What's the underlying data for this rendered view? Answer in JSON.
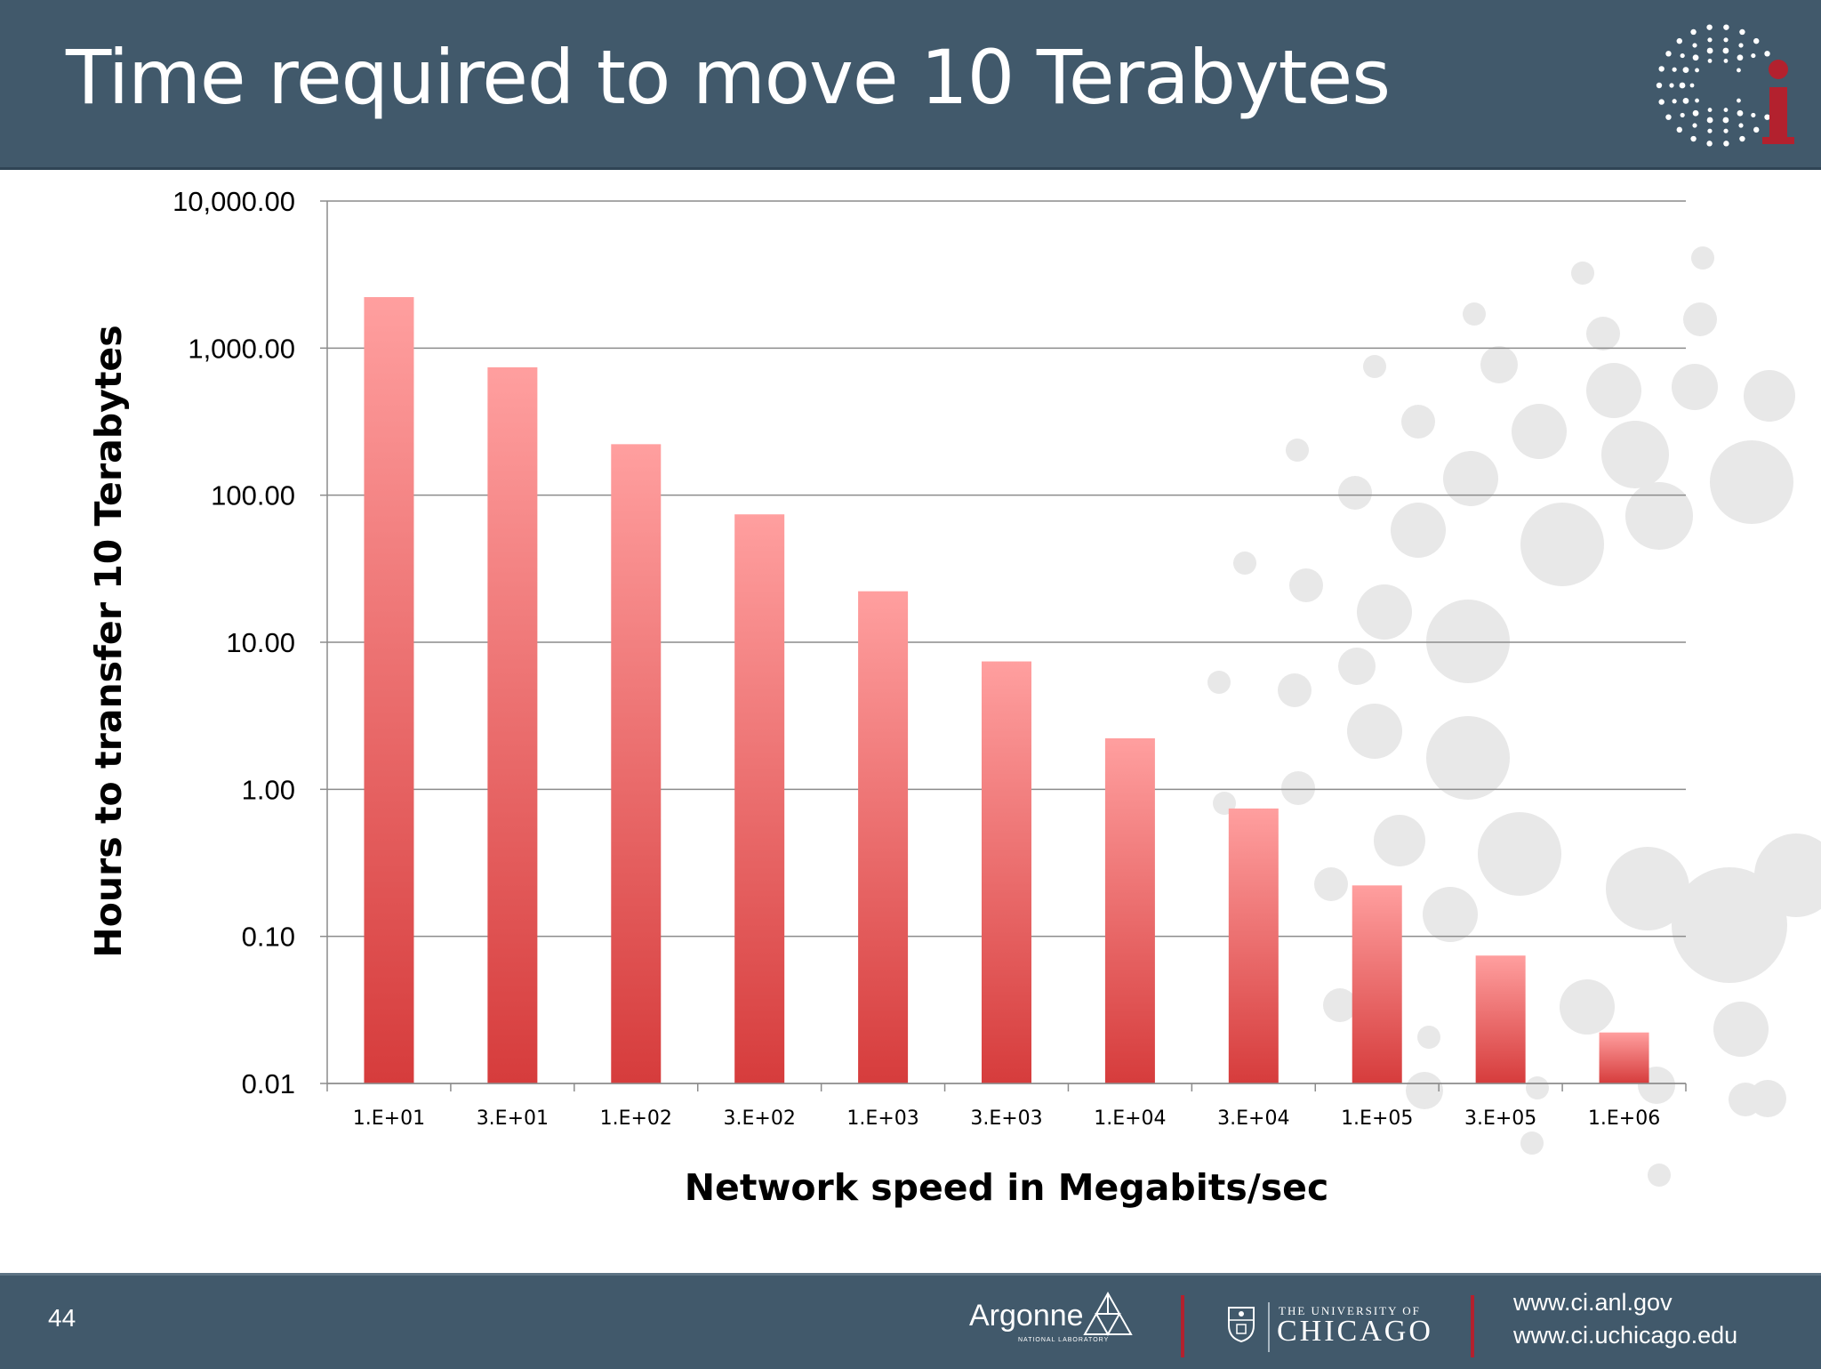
{
  "slide": {
    "title": "Time required to move 10 Terabytes",
    "page_number": "44",
    "footer": {
      "argonne_name": "Argonne",
      "argonne_sub": "NATIONAL LABORATORY",
      "uchicago_top": "THE UNIVERSITY OF",
      "uchicago_main": "CHICAGO",
      "url1": "www.ci.anl.gov",
      "url2": "www.ci.uchicago.edu"
    },
    "colors": {
      "header_bg": "#41596b",
      "accent_red": "#b3212e",
      "bar_top": "#ff9f9f",
      "bar_bottom": "#d63c3c"
    }
  },
  "chart_data": {
    "type": "bar",
    "title": "",
    "xlabel": "Network speed in Megabits/sec",
    "ylabel": "Hours to transfer 10 Terabytes",
    "yscale": "log",
    "ylim": [
      0.01,
      10000
    ],
    "yticks": [
      0.01,
      0.1,
      1,
      10,
      100,
      1000,
      10000
    ],
    "ytick_labels": [
      "0.01",
      "0.10",
      "1.00",
      "10.00",
      "100.00",
      "1,000.00",
      "10,000.00"
    ],
    "grid": true,
    "categories": [
      "1.E+01",
      "3.E+01",
      "1.E+02",
      "3.E+02",
      "1.E+03",
      "3.E+03",
      "1.E+04",
      "3.E+04",
      "1.E+05",
      "3.E+05",
      "1.E+06"
    ],
    "series": [
      {
        "values": [
          2222.2,
          740.7,
          222.2,
          74.07,
          22.22,
          7.407,
          2.222,
          0.7407,
          0.2222,
          0.07407,
          0.02222
        ]
      }
    ]
  }
}
